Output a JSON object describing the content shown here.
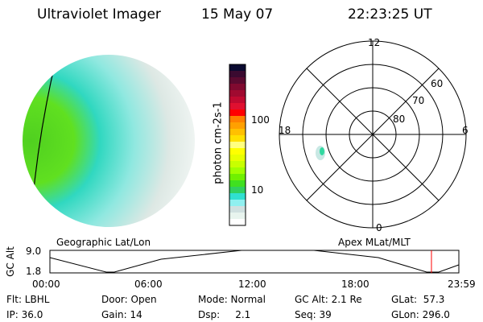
{
  "header": {
    "title": "Ultraviolet Imager",
    "date": "15 May 07",
    "time": "22:23:25 UT"
  },
  "colorbar": {
    "label": "photon cm-2s-1",
    "ticks": [
      "100",
      "10"
    ],
    "colors": [
      "#0a0a30",
      "#3a0a30",
      "#5a0a30",
      "#800a30",
      "#a00a30",
      "#c00a30",
      "#e01030",
      "#ff0000",
      "#ff8000",
      "#ffa000",
      "#ffc000",
      "#ffe000",
      "#ffff80",
      "#ffff00",
      "#e8ff00",
      "#c8ff00",
      "#a0ff00",
      "#70f000",
      "#40e020",
      "#30d060",
      "#30e0d0",
      "#90f0f0",
      "#d0e0e0",
      "#e8f4ee",
      "#ffffff"
    ]
  },
  "polar": {
    "mlt_labels": [
      "12",
      "18",
      "6",
      "0"
    ],
    "lat_labels": [
      "60",
      "70",
      "80"
    ]
  },
  "timeline": {
    "left_label": "Geographic Lat/Lon",
    "right_label": "Apex MLat/MLT",
    "ylabel": "GC Alt",
    "ymax": "9.0",
    "ymin": "1.8",
    "xticks": [
      "00:00",
      "06:00",
      "12:00",
      "18:00",
      "23:59"
    ],
    "marker_color": "#ff0000",
    "marker_fraction": 0.933
  },
  "status": {
    "flt": "Flt: LBHL",
    "ip": "IP: 36.0",
    "door": "Door: Open",
    "gain": "Gain: 14",
    "mode": "Mode: Normal",
    "dsp": "Dsp:     2.1",
    "gcalt": "GC Alt: 2.1 Re",
    "seq": "Seq: 39",
    "glat": "GLat:  57.3",
    "glon": "GLon: 296.0"
  }
}
